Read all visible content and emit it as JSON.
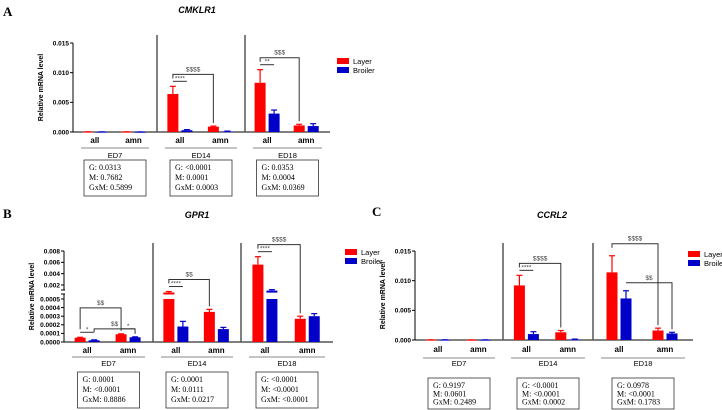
{
  "legend": {
    "layer": "Layer",
    "broiler": "Broiler"
  },
  "colors": {
    "layer": "#ff0000",
    "broiler": "#0000c8"
  },
  "chart_data": [
    {
      "panel": "A",
      "type": "bar",
      "title": "CMKLR1",
      "ylabel": "Relative mRNA level",
      "ylim": [
        0,
        0.015
      ],
      "yticks": [
        "0.000",
        "0.005",
        "0.010",
        "0.015"
      ],
      "ytick_values": [
        0,
        0.005,
        0.01,
        0.015
      ],
      "groups": [
        {
          "label": "ED7",
          "categories": [
            "all",
            "amn"
          ],
          "layer": [
            3e-05,
            3e-05
          ],
          "layer_err": [
            4e-05,
            4e-05
          ],
          "broiler": [
            2e-05,
            1e-05
          ],
          "broiler_err": [
            3e-05,
            2e-05
          ],
          "stats": [
            "G: 0.0313",
            "M: 0.7682",
            "GxM: 0.5899"
          ],
          "sig": []
        },
        {
          "label": "ED14",
          "categories": [
            "all",
            "amn"
          ],
          "layer": [
            0.0064,
            0.0009
          ],
          "layer_err": [
            0.0077,
            0.001
          ],
          "broiler": [
            0.0003,
            0.0001
          ],
          "broiler_err": [
            0.0004,
            0.00015
          ],
          "stats": [
            "G: <0.0001",
            "M: 0.0001",
            "GxM: 0.0003"
          ],
          "sig": [
            {
              "text": "****",
              "kind": "pair",
              "cat": 0
            },
            {
              "text": "$$$$",
              "kind": "bracket",
              "series": "layer",
              "level": 1
            }
          ]
        },
        {
          "label": "ED18",
          "categories": [
            "all",
            "amn"
          ],
          "layer": [
            0.0083,
            0.0011
          ],
          "layer_err": [
            0.0105,
            0.0013
          ],
          "broiler": [
            0.0031,
            0.001
          ],
          "broiler_err": [
            0.0037,
            0.0014
          ],
          "stats": [
            "G: 0.0353",
            "M: 0.0004",
            "GxM: 0.0369"
          ],
          "sig": [
            {
              "text": "**",
              "kind": "pair",
              "cat": 0
            },
            {
              "text": "$$$",
              "kind": "bracket",
              "series": "layer",
              "level": 1
            }
          ]
        }
      ]
    },
    {
      "panel": "B",
      "type": "bar",
      "title": "GPR1",
      "ylabel": "Relative mRNA level",
      "ylim": [
        0,
        0.008
      ],
      "axis_break": [
        0.0005,
        0.002
      ],
      "yticks": [
        "0.0000",
        "0.0001",
        "0.0002",
        "0.0003",
        "0.0004",
        "0.0005",
        "0.002",
        "0.004",
        "0.006",
        "0.008"
      ],
      "ytick_values": [
        0,
        0.0001,
        0.0002,
        0.0003,
        0.0004,
        0.0005,
        0.002,
        0.004,
        0.006,
        0.008
      ],
      "groups": [
        {
          "label": "ED7",
          "categories": [
            "all",
            "amn"
          ],
          "layer": [
            5e-05,
            9e-05
          ],
          "layer_err": [
            5.5e-05,
            9.5e-05
          ],
          "broiler": [
            2e-05,
            5.5e-05
          ],
          "broiler_err": [
            2.5e-05,
            6e-05
          ],
          "stats": [
            "G: 0.0001",
            "M: <0.0001",
            "GxM: 0.8886"
          ],
          "sig": [
            {
              "text": "*",
              "kind": "pair",
              "cat": 0
            },
            {
              "text": "*",
              "kind": "pair",
              "cat": 1
            },
            {
              "text": "$$",
              "kind": "bracket",
              "series": "layer",
              "level": 2
            },
            {
              "text": "$$",
              "kind": "bracket",
              "series": "broiler",
              "level": 1
            }
          ]
        },
        {
          "label": "ED14",
          "categories": [
            "all",
            "amn"
          ],
          "layer": [
            0.0012,
            0.00035
          ],
          "layer_err": [
            0.0013,
            0.00038
          ],
          "broiler": [
            0.00018,
            0.00015
          ],
          "broiler_err": [
            0.00024,
            0.00017
          ],
          "stats": [
            "G: 0.0001",
            "M: 0.0111",
            "GxM: 0.0217"
          ],
          "sig": [
            {
              "text": "****",
              "kind": "pair",
              "cat": 0
            },
            {
              "text": "$$",
              "kind": "bracket",
              "series": "layer",
              "level": 1
            }
          ]
        },
        {
          "label": "ED18",
          "categories": [
            "all",
            "amn"
          ],
          "layer": [
            0.0056,
            0.00027
          ],
          "layer_err": [
            0.007,
            0.0003
          ],
          "broiler": [
            0.0014,
            0.0003
          ],
          "broiler_err": [
            0.0015,
            0.00033
          ],
          "stats": [
            "G: <0.0001",
            "M: <0.0001",
            "GxM: <0.0001"
          ],
          "sig": [
            {
              "text": "****",
              "kind": "pair",
              "cat": 0
            },
            {
              "text": "$$$$",
              "kind": "bracket",
              "series": "layer",
              "level": 1
            }
          ]
        }
      ]
    },
    {
      "panel": "C",
      "type": "bar",
      "title": "CCRL2",
      "ylabel": "Relative mRNA level",
      "ylim": [
        0,
        0.015
      ],
      "yticks": [
        "0.000",
        "0.005",
        "0.010",
        "0.015"
      ],
      "ytick_values": [
        0,
        0.005,
        0.01,
        0.015
      ],
      "groups": [
        {
          "label": "ED7",
          "categories": [
            "all",
            "amn"
          ],
          "layer": [
            3e-05,
            2e-05
          ],
          "layer_err": [
            4e-05,
            3e-05
          ],
          "broiler": [
            3e-05,
            2e-05
          ],
          "broiler_err": [
            4e-05,
            3e-05
          ],
          "stats": [
            "G: 0.9197",
            "M: 0.0601",
            "GxM: 0.2489"
          ],
          "sig": []
        },
        {
          "label": "ED14",
          "categories": [
            "all",
            "amn"
          ],
          "layer": [
            0.0092,
            0.0013
          ],
          "layer_err": [
            0.0109,
            0.0016
          ],
          "broiler": [
            0.001,
            0.0001
          ],
          "broiler_err": [
            0.0014,
            0.00015
          ],
          "stats": [
            "G: <0.0001",
            "M: <0.0001",
            "GxM: 0.0002"
          ],
          "sig": [
            {
              "text": "****",
              "kind": "pair",
              "cat": 0
            },
            {
              "text": "$$$$",
              "kind": "bracket",
              "series": "layer",
              "level": 1
            }
          ]
        },
        {
          "label": "ED18",
          "categories": [
            "all",
            "amn"
          ],
          "layer": [
            0.0114,
            0.0016
          ],
          "layer_err": [
            0.0142,
            0.002
          ],
          "broiler": [
            0.007,
            0.0011
          ],
          "broiler_err": [
            0.0083,
            0.0013
          ],
          "stats": [
            "G: 0.0978",
            "M: <0.0001",
            "GxM: 0.1783"
          ],
          "sig": [
            {
              "text": "$$$$",
              "kind": "bracket",
              "series": "layer",
              "level": 1
            },
            {
              "text": "$$",
              "kind": "bracket",
              "series": "broiler",
              "level": 1
            }
          ]
        }
      ]
    }
  ]
}
